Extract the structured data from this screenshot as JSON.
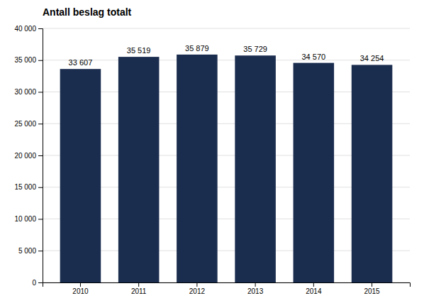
{
  "chart_data": {
    "type": "bar",
    "title": "Antall beslag totalt",
    "categories": [
      "2010",
      "2011",
      "2012",
      "2013",
      "2014",
      "2015"
    ],
    "values": [
      33607,
      35519,
      35879,
      35729,
      34570,
      34254
    ],
    "value_labels": [
      "33 607",
      "35 519",
      "35 879",
      "35 729",
      "34 570",
      "34 254"
    ],
    "data_labels": true,
    "color": "#1b2d4f",
    "ylim": [
      0,
      40000
    ],
    "yticks": [
      0,
      {
        "value": 5000,
        "label": "5 000"
      },
      {
        "value": 10000,
        "label": "10 000"
      },
      {
        "value": 15000,
        "label": "15 000"
      },
      {
        "value": 20000,
        "label": "20 000"
      },
      {
        "value": 25000,
        "label": "25 000"
      },
      {
        "value": 30000,
        "label": "30 000"
      },
      {
        "value": 35000,
        "label": "35 000"
      },
      {
        "value": 40000,
        "label": "40 000"
      }
    ],
    "grid": true
  }
}
